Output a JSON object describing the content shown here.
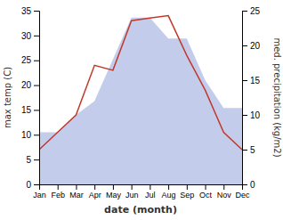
{
  "chart_data": {
    "type": "line",
    "xlabel": "date (month)",
    "ylabel": "max temp (C)",
    "y2label": "med. precipitation (kg/m2)",
    "categories": [
      "Jan",
      "Feb",
      "Mar",
      "Apr",
      "May",
      "Jun",
      "Jul",
      "Aug",
      "Sep",
      "Oct",
      "Nov",
      "Dec"
    ],
    "series": [
      {
        "type": "area",
        "axis": "y2",
        "color": "#b8c4e8",
        "values": [
          7.5,
          7.5,
          10,
          12,
          18,
          24,
          24,
          21,
          21,
          15,
          11,
          11
        ]
      },
      {
        "type": "line",
        "color": "#c0392b",
        "values": [
          7,
          10.5,
          14,
          24,
          23,
          33,
          33.5,
          34,
          26,
          19,
          10.5,
          7
        ]
      }
    ],
    "ylim": [
      0,
      35
    ],
    "yticks": [
      0,
      5,
      10,
      15,
      20,
      25,
      30,
      35
    ],
    "y2lim": [
      0,
      25
    ],
    "y2ticks": [
      0,
      5,
      10,
      15,
      20,
      25
    ],
    "grid": false
  }
}
